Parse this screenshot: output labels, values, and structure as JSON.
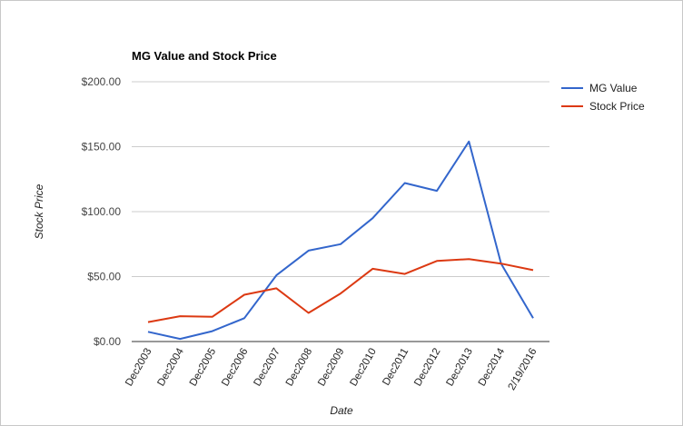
{
  "chart_data": {
    "type": "line",
    "title": "MG Value and Stock Price",
    "xlabel": "Date",
    "ylabel": "Stock Price",
    "categories": [
      "Dec2003",
      "Dec2004",
      "Dec2005",
      "Dec2006",
      "Dec2007",
      "Dec2008",
      "Dec2009",
      "Dec2010",
      "Dec2011",
      "Dec2012",
      "Dec2013",
      "Dec2014",
      "2/19/2016"
    ],
    "ylim": [
      0,
      200
    ],
    "yticks": [
      0,
      50,
      100,
      150,
      200
    ],
    "ytick_labels": [
      "$0.00",
      "$50.00",
      "$100.00",
      "$150.00",
      "$200.00"
    ],
    "grid": true,
    "legend_position": "right",
    "series": [
      {
        "name": "MG Value",
        "color": "#3366cc",
        "values": [
          7.5,
          2,
          8,
          18,
          51,
          70,
          75,
          95,
          122,
          116,
          154,
          60,
          18
        ]
      },
      {
        "name": "Stock Price",
        "color": "#dc3912",
        "values": [
          15,
          19.5,
          19,
          36,
          41,
          22,
          37,
          56,
          52,
          62,
          63.5,
          60,
          55
        ]
      }
    ]
  }
}
